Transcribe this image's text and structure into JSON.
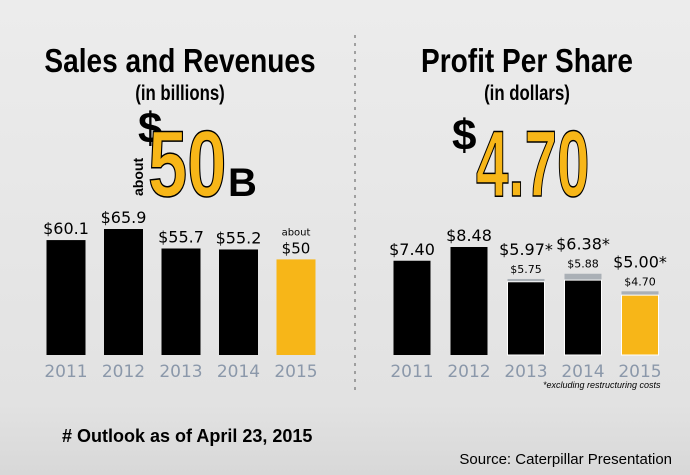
{
  "chart_data": [
    {
      "type": "bar",
      "title": "Sales and Revenues",
      "subtitle": "(in billions)",
      "headline": {
        "note": "about",
        "currency": "$",
        "number": "50",
        "unit": "B"
      },
      "categories": [
        "2011",
        "2012",
        "2013",
        "2014",
        "2015"
      ],
      "series": [
        {
          "values": [
            60.1,
            65.9,
            55.7,
            55.2,
            50
          ],
          "value_labels": [
            "$60.1",
            "$65.9",
            "$55.7",
            "$55.2",
            "$50"
          ],
          "value_notes": [
            null,
            null,
            null,
            null,
            "about"
          ],
          "colors": [
            "#000000",
            "#000000",
            "#000000",
            "#000000",
            "#f7b618"
          ]
        }
      ]
    },
    {
      "type": "bar",
      "title": "Profit Per Share",
      "subtitle": "(in dollars)",
      "headline": {
        "currency": "$",
        "number": "4.70"
      },
      "categories": [
        "2011",
        "2012",
        "2013",
        "2014",
        "2015"
      ],
      "series": [
        {
          "values": [
            7.4,
            8.48,
            5.75,
            5.88,
            4.7
          ],
          "value_labels": [
            "$7.40",
            "$8.48",
            "$5.75",
            "$5.88",
            "$4.70"
          ],
          "colors": [
            "#000000",
            "#000000",
            "#000000",
            "#000000",
            "#f7b618"
          ]
        },
        {
          "values": [
            null,
            null,
            5.97,
            6.38,
            5.0
          ],
          "value_labels": [
            null,
            null,
            "$5.97*",
            "$6.38*",
            "$5.00*"
          ],
          "color": "#aab0b6"
        }
      ],
      "footnote": "*excluding restructuring costs"
    }
  ],
  "outlook": "# Outlook as of April 23, 2015",
  "source": "Source: Caterpillar Presentation"
}
